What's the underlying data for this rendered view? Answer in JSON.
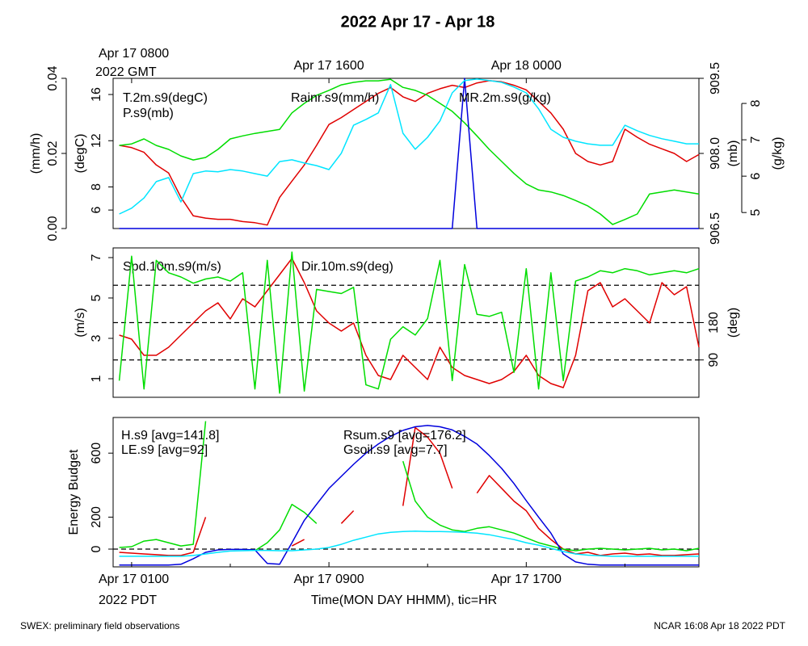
{
  "title": "2022 Apr 17 - Apr 18",
  "footer_left": "SWEX: preliminary field observations",
  "footer_right": "NCAR 16:08 Apr 18 2022 PDT",
  "chart_data": [
    {
      "type": "line",
      "x": [
        0.5,
        1,
        1.5,
        2,
        2.5,
        3,
        3.5,
        4,
        4.5,
        5,
        5.5,
        6,
        6.5,
        7,
        7.5,
        8,
        8.5,
        9,
        9.5,
        10,
        10.5,
        11,
        11.5,
        12,
        12.5,
        13,
        13.5,
        14,
        14.5,
        15,
        15.5,
        16,
        16.5,
        17,
        17.5,
        18,
        18.5,
        19,
        19.5,
        20,
        20.5,
        21,
        21.5,
        22,
        22.5,
        23,
        23.5,
        24
      ],
      "xlim": [
        0.25,
        24
      ],
      "xticks_top": [
        {
          "value": 1,
          "label": "Apr 17 0800"
        },
        {
          "value": 9,
          "label": "Apr 17 1600"
        },
        {
          "value": 17,
          "label": "Apr 18 0000"
        }
      ],
      "x_top_label": "2022 GMT",
      "ylim": [
        0,
        0.04
      ],
      "yticks": [
        {
          "value": 0,
          "label": "0.00"
        },
        {
          "value": 0.02,
          "label": "0.02"
        },
        {
          "value": 0.04,
          "label": "0.04"
        }
      ],
      "ylabel": "(mm/h)",
      "y2lim": [
        4.4,
        17.4
      ],
      "y2ticks": [
        6,
        8,
        12,
        16
      ],
      "y2label": "(degC)",
      "y3lim": [
        906.5,
        909.5
      ],
      "y3ticks": [
        {
          "value": 906.5,
          "label": "906.5"
        },
        {
          "value": 908,
          "label": "908.0"
        },
        {
          "value": 909.5,
          "label": "909.5"
        }
      ],
      "y3label": "(mb)",
      "y4lim": [
        4.56,
        8.69
      ],
      "y4ticks": [
        5,
        6,
        7,
        8
      ],
      "y4label": "(g/kg)",
      "series": [
        {
          "name": "T.2m.s9(degC)",
          "color": "#e00000",
          "axis": "y2",
          "values": [
            11.6,
            11.4,
            11.0,
            9.9,
            9.2,
            7.1,
            5.5,
            5.3,
            5.2,
            5.2,
            5.0,
            4.9,
            4.7,
            7.1,
            8.5,
            9.9,
            11.6,
            13.4,
            14.0,
            14.7,
            15.4,
            16.1,
            16.6,
            15.8,
            15.4,
            16.1,
            16.5,
            16.8,
            16.6,
            17.0,
            17.2,
            17.1,
            16.8,
            16.4,
            15.4,
            14.4,
            13.0,
            10.9,
            10.2,
            9.9,
            10.2,
            13.0,
            12.3,
            11.7,
            11.3,
            10.9,
            10.2,
            10.8
          ]
        },
        {
          "name": "P.s9(mb)",
          "color": "#00dd00",
          "axis": "y3",
          "values": [
            908.16,
            908.19,
            908.29,
            908.16,
            908.08,
            907.95,
            907.87,
            907.92,
            908.08,
            908.29,
            908.35,
            908.4,
            908.44,
            908.48,
            908.81,
            909.0,
            909.16,
            909.26,
            909.37,
            909.42,
            909.45,
            909.45,
            909.48,
            909.32,
            909.26,
            909.16,
            909.0,
            908.84,
            908.61,
            908.35,
            908.08,
            907.84,
            907.6,
            907.39,
            907.27,
            907.23,
            907.16,
            907.06,
            906.95,
            906.79,
            906.58,
            906.68,
            906.79,
            907.19,
            907.23,
            907.27,
            907.23,
            907.19
          ]
        },
        {
          "name": "Rainr.s9(mm/h)",
          "color": "#0000dd",
          "axis": "y",
          "values": [
            0,
            0,
            0,
            0,
            0,
            0,
            0,
            0,
            0,
            0,
            0,
            0,
            0,
            0,
            0,
            0,
            0,
            0,
            0,
            0,
            0,
            0,
            0,
            0,
            0,
            0,
            0,
            0,
            0.04,
            0,
            0,
            0,
            0,
            0,
            0,
            0,
            0,
            0,
            0,
            0,
            0,
            0,
            0,
            0,
            0,
            0,
            0,
            0
          ]
        },
        {
          "name": "MR.2m.s9(g/kg)",
          "color": "#00e5ff",
          "axis": "y4",
          "values": [
            4.96,
            5.12,
            5.4,
            5.85,
            5.96,
            5.29,
            6.07,
            6.14,
            6.12,
            6.18,
            6.14,
            6.07,
            6.0,
            6.4,
            6.45,
            6.36,
            6.29,
            6.18,
            6.63,
            7.4,
            7.56,
            7.74,
            8.52,
            7.18,
            6.74,
            7.07,
            7.52,
            8.29,
            8.63,
            8.67,
            8.63,
            8.58,
            8.45,
            8.29,
            7.85,
            7.29,
            7.07,
            6.96,
            6.89,
            6.85,
            6.85,
            7.4,
            7.25,
            7.12,
            7.03,
            6.96,
            6.89,
            6.89
          ]
        }
      ]
    },
    {
      "type": "line",
      "x": [
        0.5,
        1,
        1.5,
        2,
        2.5,
        3,
        3.5,
        4,
        4.5,
        5,
        5.5,
        6,
        6.5,
        7,
        7.5,
        8,
        8.5,
        9,
        9.5,
        10,
        10.5,
        11,
        11.5,
        12,
        12.5,
        13,
        13.5,
        14,
        14.5,
        15,
        15.5,
        16,
        16.5,
        17,
        17.5,
        18,
        18.5,
        19,
        19.5,
        20,
        20.5,
        21,
        21.5,
        22,
        22.5,
        23,
        23.5,
        24
      ],
      "xlim": [
        0.25,
        24
      ],
      "ylim": [
        0.08,
        7.48
      ],
      "yticks": [
        1,
        3,
        5,
        7
      ],
      "ylabel": "(m/s)",
      "y2lim": [
        0,
        360
      ],
      "y2ticks": [
        90,
        180
      ],
      "y2label": "(deg)",
      "reference_lines": {
        "axis": "y2",
        "values": [
          90,
          180,
          270
        ]
      },
      "series": [
        {
          "name": "Spd.10m.s9(m/s)",
          "color": "#e00000",
          "axis": "y",
          "values": [
            3.16,
            2.96,
            2.16,
            2.16,
            2.56,
            3.16,
            3.76,
            4.36,
            4.76,
            3.96,
            4.96,
            4.56,
            5.36,
            6.16,
            6.96,
            5.76,
            4.36,
            3.76,
            3.36,
            3.76,
            2.16,
            1.16,
            0.96,
            2.16,
            1.56,
            0.96,
            2.56,
            1.56,
            1.16,
            0.96,
            0.76,
            0.96,
            1.36,
            2.16,
            1.16,
            0.76,
            0.56,
            2.16,
            5.36,
            5.76,
            4.56,
            4.96,
            4.36,
            3.76,
            5.76,
            5.16,
            5.56,
            2.56
          ]
        },
        {
          "name": "Dir.10m.s9(deg)",
          "color": "#00dd00",
          "axis": "y2",
          "values": [
            40,
            340,
            20,
            330,
            300,
            290,
            275,
            285,
            290,
            280,
            300,
            20,
            330,
            10,
            350,
            15,
            260,
            255,
            250,
            265,
            30,
            20,
            140,
            170,
            150,
            190,
            330,
            40,
            320,
            200,
            195,
            205,
            60,
            310,
            20,
            300,
            40,
            280,
            290,
            305,
            300,
            310,
            305,
            295,
            300,
            305,
            300,
            310
          ]
        }
      ]
    },
    {
      "type": "line",
      "x": [
        0.5,
        1,
        1.5,
        2,
        2.5,
        3,
        3.5,
        4,
        4.5,
        5,
        5.5,
        6,
        6.5,
        7,
        7.5,
        8,
        8.5,
        9,
        9.5,
        10,
        10.5,
        11,
        11.5,
        12,
        12.5,
        13,
        13.5,
        14,
        14.5,
        15,
        15.5,
        16,
        16.5,
        17,
        17.5,
        18,
        18.5,
        19,
        19.5,
        20,
        20.5,
        21,
        21.5,
        22,
        22.5,
        23,
        23.5,
        24
      ],
      "xlim": [
        0.25,
        24
      ],
      "xticks": [
        {
          "value": 1,
          "label": "Apr 17 0100"
        },
        {
          "value": 9,
          "label": "Apr 17 0900"
        },
        {
          "value": 17,
          "label": "Apr 17 1700"
        }
      ],
      "xminorticks": [
        5,
        13,
        21
      ],
      "x_bottom_label": "2022 PDT",
      "xlabel": "Time(MON DAY HHMM), tic=HR",
      "ylim": [
        -111,
        823
      ],
      "yticks": [
        0,
        200,
        600
      ],
      "ylabel": "Energy Budget",
      "reference_lines": {
        "axis": "y",
        "values": [
          0
        ]
      },
      "series": [
        {
          "name": "H.s9 [avg=141.8]",
          "color": "#e00000",
          "axis": "y",
          "values": [
            -20,
            -25,
            -30,
            -35,
            -40,
            -40,
            -20,
            200,
            null,
            null,
            null,
            null,
            null,
            null,
            20,
            60,
            null,
            null,
            160,
            240,
            null,
            null,
            null,
            270,
            760,
            700,
            600,
            380,
            null,
            350,
            460,
            380,
            300,
            240,
            130,
            60,
            0,
            -30,
            -20,
            -40,
            -30,
            -25,
            -35,
            -30,
            -40,
            -40,
            -35,
            -30
          ]
        },
        {
          "name": "LE.s9 [avg=92]",
          "color": "#00dd00",
          "axis": "y",
          "values": [
            10,
            15,
            50,
            60,
            40,
            20,
            30,
            800,
            null,
            null,
            null,
            -10,
            40,
            120,
            280,
            230,
            160,
            null,
            null,
            null,
            null,
            null,
            null,
            550,
            300,
            200,
            150,
            120,
            110,
            130,
            140,
            120,
            100,
            70,
            40,
            20,
            0,
            -10,
            0,
            5,
            0,
            -5,
            0,
            5,
            -5,
            0,
            -10,
            5
          ]
        },
        {
          "name": "Rsum.s9 [avg=176.2]",
          "color": "#0000dd",
          "axis": "y",
          "values": [
            -100,
            -100,
            -100,
            -100,
            -100,
            -95,
            -60,
            -20,
            -5,
            -2,
            -2,
            -5,
            -90,
            -95,
            40,
            180,
            280,
            379,
            455,
            530,
            600,
            657,
            705,
            742,
            765,
            773,
            765,
            745,
            705,
            657,
            585,
            505,
            410,
            303,
            200,
            100,
            -30,
            -80,
            -95,
            -100,
            -100,
            -100,
            -100,
            -100,
            -100,
            -100,
            -100,
            -100
          ]
        },
        {
          "name": "Gsoil.s9 [avg=7.7]",
          "color": "#00e5ff",
          "axis": "y",
          "values": [
            -45,
            -45,
            -45,
            -45,
            -45,
            -45,
            -40,
            -30,
            -20,
            -12,
            -10,
            -8,
            -8,
            -10,
            -10,
            -5,
            0,
            10,
            30,
            55,
            75,
            95,
            105,
            110,
            112,
            110,
            110,
            108,
            105,
            100,
            90,
            75,
            60,
            40,
            25,
            5,
            -15,
            -30,
            -38,
            -42,
            -45,
            -45,
            -45,
            -45,
            -45,
            -45,
            -45,
            -45
          ]
        }
      ]
    }
  ]
}
